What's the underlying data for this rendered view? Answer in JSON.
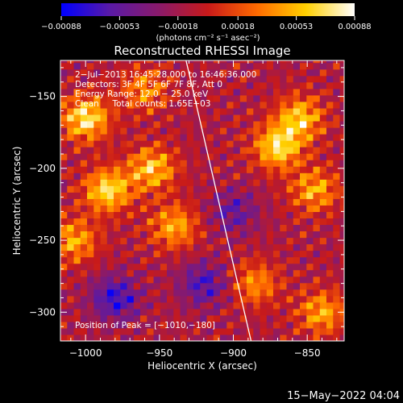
{
  "chart_data": {
    "type": "heatmap",
    "title": "Reconstructed RHESSI Image",
    "xlabel": "Heliocentric X (arcsec)",
    "ylabel": "Heliocentric Y (arcsec)",
    "xlim": [
      -1017,
      -825
    ],
    "ylim": [
      -320,
      -125
    ],
    "x_ticks": [
      -1000,
      -950,
      -900,
      -850
    ],
    "y_ticks": [
      -150,
      -200,
      -250,
      -300
    ],
    "x_tick_labels": [
      "−1000",
      "−950",
      "−900",
      "−850"
    ],
    "y_tick_labels": [
      "−150",
      "−200",
      "−250",
      "−300"
    ],
    "colorbar": {
      "range": [
        -0.00088,
        0.00088
      ],
      "tick_values": [
        -0.00088,
        -0.00053,
        -0.00018,
        0.00018,
        0.00053,
        0.00088
      ],
      "tick_labels": [
        "−0.00088",
        "−0.00053",
        "−0.00018",
        "0.00018",
        "0.00053",
        "0.00088"
      ],
      "unit_label": "(photons cm⁻² s⁻¹ asec⁻²)",
      "colors": [
        "#0000ff",
        "#5a1aa6",
        "#8a1a6a",
        "#c81a1a",
        "#ff6a00",
        "#ffd000",
        "#ffffff"
      ]
    },
    "annotations": [
      "2−Jul−2013 16:45:28.000 to 16:46:36.000",
      "Detectors: 3F 4F 5F 6F 7F 8F, Att 0",
      "Energy Range: 12.0 − 25.0 keV",
      "Clean     Total counts: 1.65E+03"
    ],
    "peak_label": "Position of Peak = [−1010,−180]",
    "limb_line": [
      [
        -932,
        -125
      ],
      [
        -888,
        -320
      ]
    ],
    "blobs": [
      {
        "x": -1000,
        "y": -165,
        "value": 0.00085
      },
      {
        "x": -985,
        "y": -215,
        "value": 0.0008
      },
      {
        "x": -1008,
        "y": -250,
        "value": 0.0006
      },
      {
        "x": -955,
        "y": -200,
        "value": 0.0007
      },
      {
        "x": -940,
        "y": -240,
        "value": 0.0006
      },
      {
        "x": -960,
        "y": -145,
        "value": 0.0005
      },
      {
        "x": -870,
        "y": -185,
        "value": 0.0008
      },
      {
        "x": -855,
        "y": -165,
        "value": 0.0007
      },
      {
        "x": -845,
        "y": -215,
        "value": 0.0006
      },
      {
        "x": -885,
        "y": -280,
        "value": 0.0005
      },
      {
        "x": -840,
        "y": -300,
        "value": 0.0006
      },
      {
        "x": -980,
        "y": -290,
        "value": -0.0006
      },
      {
        "x": -920,
        "y": -280,
        "value": -0.0005
      },
      {
        "x": -900,
        "y": -230,
        "value": -0.0004
      }
    ]
  },
  "timestamp": "15−May−2022 04:04"
}
